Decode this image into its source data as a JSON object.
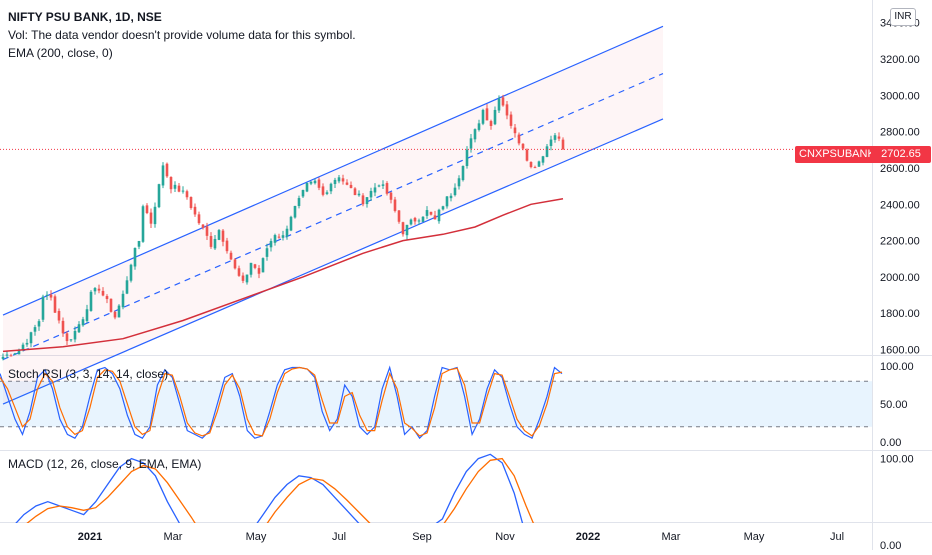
{
  "header": {
    "title": "NIFTY PSU BANK, 1D, NSE",
    "vol_note": "Vol: The data vendor doesn't provide volume data for this symbol.",
    "ema_label": "EMA (200, close, 0)"
  },
  "currency": "INR",
  "last_price": {
    "symbol": "CNXPSUBANK",
    "value_label": "2702.65",
    "value": 2702.65
  },
  "colors": {
    "up": "#26a69a",
    "down": "#ef5350",
    "channel": "#2962ff",
    "ema": "#d32f3a",
    "stoch_k": "#2962ff",
    "stoch_d": "#ff6d00",
    "macd": "#2962ff",
    "signal": "#ff6d00",
    "price_tag": "#f23645"
  },
  "chart_data": [
    {
      "type": "candlestick",
      "pane": "price",
      "y_ticks": [
        "3400.00",
        "3200.00",
        "3000.00",
        "2800.00",
        "2600.00",
        "2400.00",
        "2200.00",
        "2000.00",
        "1800.00",
        "1600.00"
      ],
      "ylim": [
        1570,
        3470
      ],
      "x_ticks": [
        "2021",
        "Mar",
        "May",
        "Jul",
        "Sep",
        "Nov",
        "2022",
        "Mar",
        "May",
        "Jul"
      ],
      "price_path": [
        [
          0,
          1560
        ],
        [
          4,
          1600
        ],
        [
          7,
          1680
        ],
        [
          9,
          1760
        ],
        [
          10,
          1900
        ],
        [
          12,
          1880
        ],
        [
          14,
          1760
        ],
        [
          16,
          1640
        ],
        [
          18,
          1700
        ],
        [
          20,
          1780
        ],
        [
          22,
          1900
        ],
        [
          24,
          1940
        ],
        [
          26,
          1860
        ],
        [
          28,
          1780
        ],
        [
          30,
          1900
        ],
        [
          32,
          2080
        ],
        [
          34,
          2200
        ],
        [
          35,
          2400
        ],
        [
          37,
          2300
        ],
        [
          39,
          2500
        ],
        [
          40,
          2620
        ],
        [
          42,
          2500
        ],
        [
          44,
          2480
        ],
        [
          46,
          2440
        ],
        [
          48,
          2340
        ],
        [
          50,
          2260
        ],
        [
          52,
          2180
        ],
        [
          54,
          2260
        ],
        [
          56,
          2160
        ],
        [
          58,
          2040
        ],
        [
          60,
          1960
        ],
        [
          62,
          2080
        ],
        [
          64,
          2020
        ],
        [
          66,
          2160
        ],
        [
          68,
          2240
        ],
        [
          70,
          2220
        ],
        [
          72,
          2340
        ],
        [
          74,
          2420
        ],
        [
          76,
          2500
        ],
        [
          78,
          2520
        ],
        [
          80,
          2450
        ],
        [
          82,
          2520
        ],
        [
          84,
          2560
        ],
        [
          86,
          2500
        ],
        [
          88,
          2460
        ],
        [
          90,
          2420
        ],
        [
          92,
          2470
        ],
        [
          94,
          2520
        ],
        [
          96,
          2460
        ],
        [
          98,
          2360
        ],
        [
          100,
          2250
        ],
        [
          102,
          2300
        ],
        [
          104,
          2330
        ],
        [
          106,
          2360
        ],
        [
          108,
          2310
        ],
        [
          110,
          2400
        ],
        [
          112,
          2460
        ],
        [
          114,
          2560
        ],
        [
          116,
          2700
        ],
        [
          118,
          2800
        ],
        [
          120,
          2920
        ],
        [
          122,
          2840
        ],
        [
          124,
          3000
        ],
        [
          126,
          2900
        ],
        [
          128,
          2780
        ],
        [
          130,
          2720
        ],
        [
          132,
          2600
        ],
        [
          134,
          2640
        ],
        [
          136,
          2720
        ],
        [
          138,
          2800
        ],
        [
          140,
          2702
        ]
      ],
      "channel": {
        "upper": [
          [
            0,
            1790
          ],
          [
            165,
            3380
          ]
        ],
        "middle": [
          [
            0,
            1545
          ],
          [
            165,
            3120
          ]
        ],
        "lower": [
          [
            0,
            1300
          ],
          [
            165,
            2870
          ]
        ]
      },
      "ema": [
        [
          0,
          1590
        ],
        [
          15,
          1615
        ],
        [
          30,
          1660
        ],
        [
          45,
          1760
        ],
        [
          60,
          1880
        ],
        [
          75,
          2000
        ],
        [
          90,
          2130
        ],
        [
          100,
          2200
        ],
        [
          110,
          2235
        ],
        [
          118,
          2275
        ],
        [
          125,
          2340
        ],
        [
          132,
          2400
        ],
        [
          140,
          2430
        ]
      ]
    },
    {
      "type": "line",
      "pane": "stoch_rsi",
      "title": "Stoch RSI (3, 3, 14, 14, close)",
      "y_ticks": [
        "100.00",
        "50.00",
        "0.00"
      ],
      "ylim": [
        0,
        100
      ],
      "bands": [
        80,
        20
      ],
      "series": [
        {
          "name": "K",
          "values": [
            90,
            60,
            30,
            10,
            40,
            85,
            95,
            70,
            30,
            10,
            5,
            20,
            60,
            95,
            98,
            90,
            70,
            35,
            10,
            5,
            20,
            75,
            95,
            85,
            50,
            15,
            10,
            5,
            15,
            50,
            85,
            90,
            60,
            15,
            5,
            8,
            40,
            75,
            95,
            98,
            98,
            96,
            85,
            40,
            15,
            30,
            75,
            60,
            20,
            10,
            20,
            70,
            98,
            60,
            10,
            20,
            5,
            15,
            60,
            98,
            95,
            98,
            60,
            10,
            30,
            70,
            95,
            85,
            50,
            20,
            10,
            5,
            30,
            60,
            98,
            90
          ]
        },
        {
          "name": "D",
          "values": [
            85,
            70,
            45,
            20,
            30,
            70,
            90,
            80,
            45,
            20,
            10,
            15,
            45,
            85,
            95,
            93,
            80,
            50,
            20,
            10,
            15,
            60,
            90,
            88,
            60,
            25,
            12,
            8,
            12,
            40,
            75,
            88,
            70,
            30,
            10,
            8,
            30,
            65,
            90,
            96,
            98,
            96,
            88,
            55,
            25,
            25,
            60,
            65,
            35,
            15,
            15,
            55,
            90,
            70,
            25,
            18,
            8,
            12,
            45,
            90,
            95,
            97,
            75,
            25,
            25,
            60,
            90,
            88,
            60,
            30,
            15,
            8,
            22,
            50,
            90,
            92
          ]
        }
      ]
    },
    {
      "type": "bar",
      "pane": "macd",
      "title": "MACD (12, 26, close, 9, EMA, EMA)",
      "y_ticks": [
        "100.00",
        "0.00"
      ],
      "ylim": [
        -20,
        110
      ],
      "series": [
        {
          "name": "MACD",
          "values": [
            10,
            20,
            35,
            45,
            50,
            45,
            40,
            35,
            50,
            70,
            90,
            100,
            95,
            80,
            50,
            25,
            5,
            -15,
            -25,
            -20,
            -5,
            15,
            35,
            55,
            70,
            80,
            78,
            70,
            55,
            40,
            25,
            10,
            0,
            -5,
            0,
            10,
            20,
            30,
            60,
            85,
            100,
            105,
            95,
            60,
            10,
            -15,
            -5,
            5
          ]
        },
        {
          "name": "Signal",
          "values": [
            5,
            12,
            22,
            33,
            42,
            45,
            43,
            40,
            43,
            55,
            70,
            85,
            92,
            88,
            72,
            52,
            32,
            10,
            -8,
            -15,
            -10,
            0,
            18,
            38,
            55,
            70,
            77,
            75,
            65,
            52,
            38,
            24,
            12,
            3,
            0,
            5,
            12,
            22,
            42,
            65,
            85,
            98,
            100,
            80,
            45,
            12,
            -5,
            0
          ]
        }
      ]
    }
  ]
}
